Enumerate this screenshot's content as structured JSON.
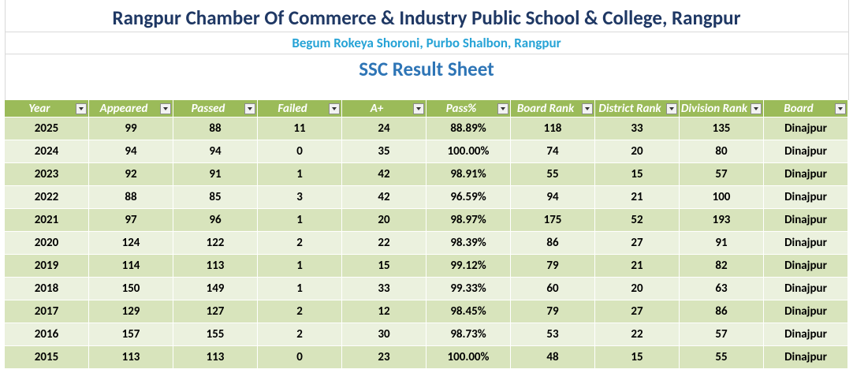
{
  "header": {
    "title": "Rangpur Chamber Of Commerce & Industry Public School & College, Rangpur",
    "subtitle": "Begum Rokeya Shoroni, Purbo Shalbon, Rangpur",
    "sheet_title": "SSC Result Sheet"
  },
  "table": {
    "columns": [
      "Year",
      "Appeared",
      "Passed",
      "Failed",
      "A+",
      "Pass%",
      "Board Rank",
      "District Rank",
      "Division Rank",
      "Board"
    ],
    "rows": [
      [
        2025,
        99,
        88,
        11,
        24,
        "88.89%",
        118,
        33,
        135,
        "Dinajpur"
      ],
      [
        2024,
        94,
        94,
        0,
        35,
        "100.00%",
        74,
        20,
        80,
        "Dinajpur"
      ],
      [
        2023,
        92,
        91,
        1,
        42,
        "98.91%",
        55,
        15,
        57,
        "Dinajpur"
      ],
      [
        2022,
        88,
        85,
        3,
        42,
        "96.59%",
        94,
        21,
        100,
        "Dinajpur"
      ],
      [
        2021,
        97,
        96,
        1,
        20,
        "98.97%",
        175,
        52,
        193,
        "Dinajpur"
      ],
      [
        2020,
        124,
        122,
        2,
        22,
        "98.39%",
        86,
        27,
        91,
        "Dinajpur"
      ],
      [
        2019,
        114,
        113,
        1,
        15,
        "99.12%",
        79,
        21,
        82,
        "Dinajpur"
      ],
      [
        2018,
        150,
        149,
        1,
        33,
        "99.33%",
        60,
        20,
        63,
        "Dinajpur"
      ],
      [
        2017,
        129,
        127,
        2,
        12,
        "98.45%",
        79,
        27,
        86,
        "Dinajpur"
      ],
      [
        2016,
        157,
        155,
        2,
        30,
        "98.73%",
        53,
        22,
        57,
        "Dinajpur"
      ],
      [
        2015,
        113,
        113,
        0,
        23,
        "100.00%",
        48,
        15,
        55,
        "Dinajpur"
      ]
    ]
  }
}
